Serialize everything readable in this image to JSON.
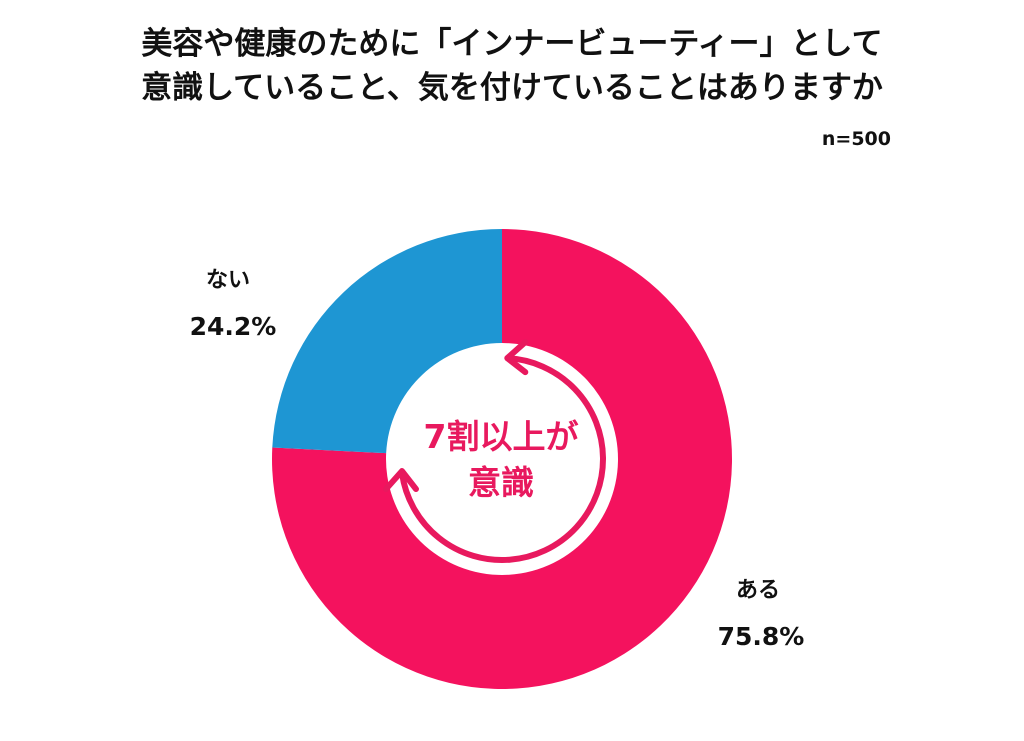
{
  "title_lines": [
    "美容や健康のために「インナービューティー」として",
    "意識していること、気を付けていることはありますか"
  ],
  "sample_size": "n=500",
  "center_note_lines": [
    "7割以上が",
    "意識"
  ],
  "colors": {
    "ある": "#F4125E",
    "ない": "#1E96D3",
    "accent_text": "#E8195E"
  },
  "chart_data": {
    "type": "pie",
    "donut": true,
    "title": "美容や健康のために「インナービューティー」として意識していること、気を付けていることはありますか",
    "categories": [
      "ある",
      "ない"
    ],
    "values": [
      75.8,
      24.2
    ],
    "value_labels": [
      "75.8%",
      "24.2%"
    ],
    "unit": "%",
    "legend": "none"
  }
}
